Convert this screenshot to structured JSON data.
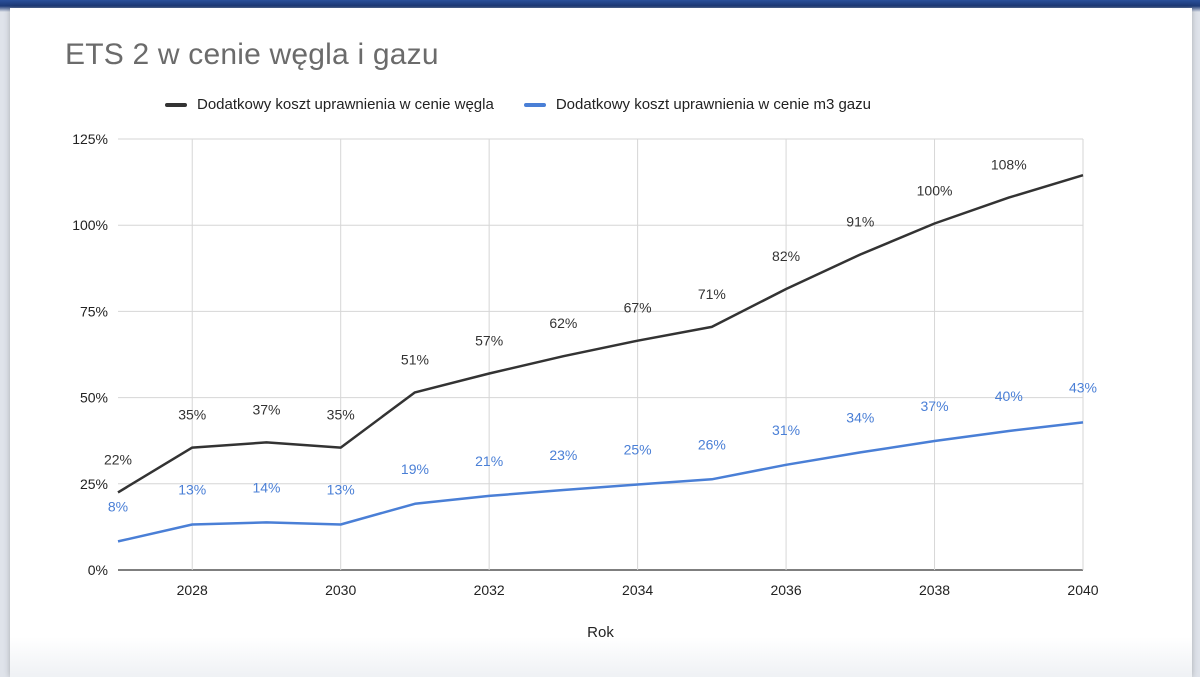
{
  "chart_data": {
    "type": "line",
    "title": "ETS 2 w cenie węgla i gazu",
    "xlabel": "Rok",
    "ylabel": "",
    "x": [
      2027,
      2028,
      2029,
      2030,
      2031,
      2032,
      2033,
      2034,
      2035,
      2036,
      2037,
      2038,
      2039,
      2040
    ],
    "xlim": [
      2027,
      2040
    ],
    "ylim": [
      0,
      125
    ],
    "x_ticks": [
      "2028",
      "2030",
      "2032",
      "2034",
      "2036",
      "2038",
      "2040"
    ],
    "y_ticks": [
      "0%",
      "25%",
      "50%",
      "75%",
      "100%",
      "125%"
    ],
    "grid": true,
    "legend_position": "top",
    "series": [
      {
        "name": "Dodatkowy koszt uprawnienia w cenie węgla",
        "color": "#333333",
        "values": [
          22.5,
          35.5,
          37,
          35.5,
          51.5,
          57,
          62,
          66.5,
          70.5,
          81.5,
          91.5,
          100.5,
          108,
          114.5
        ],
        "labels": [
          "22%",
          "35%",
          "37%",
          "35%",
          "51%",
          "57%",
          "62%",
          "67%",
          "71%",
          "82%",
          "91%",
          "100%",
          "108%",
          ""
        ]
      },
      {
        "name": "Dodatkowy koszt uprawnienia w cenie m3 gazu",
        "color": "#4a7fd6",
        "values": [
          8.3,
          13.2,
          13.8,
          13.2,
          19.2,
          21.5,
          23.2,
          24.8,
          26.3,
          30.5,
          34.1,
          37.4,
          40.3,
          42.8
        ],
        "labels": [
          "8%",
          "13%",
          "14%",
          "13%",
          "19%",
          "21%",
          "23%",
          "25%",
          "26%",
          "31%",
          "34%",
          "37%",
          "40%",
          "43%"
        ]
      }
    ]
  }
}
